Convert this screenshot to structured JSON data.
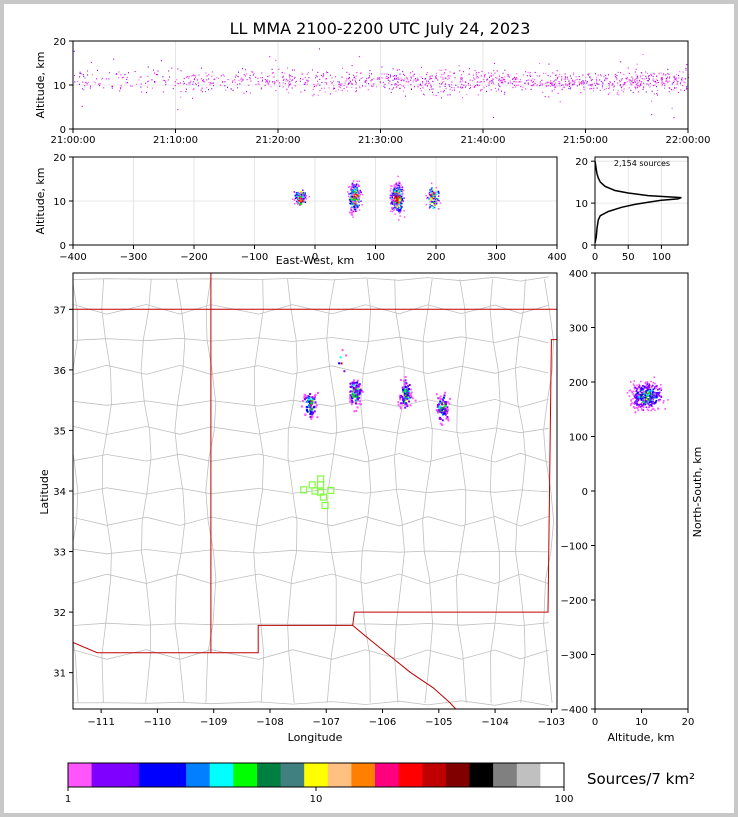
{
  "chart_data": [
    {
      "type": "scatter",
      "panel": "altitude-vs-time",
      "title": "LL MMA 2100-2200 UTC July 24, 2023",
      "ylabel": "Altitude, km",
      "xlabel": "",
      "x_ticks": [
        "21:00:00",
        "21:10:00",
        "21:20:00",
        "21:30:00",
        "21:40:00",
        "21:50:00",
        "22:00:00"
      ],
      "ylim": [
        0,
        20
      ],
      "y_ticks": [
        0,
        10,
        20
      ],
      "grid": true,
      "band_center_km": 11,
      "band_spread_km": 2
    },
    {
      "type": "scatter",
      "panel": "altitude-vs-east-west",
      "xlabel": "East-West, km",
      "ylabel": "Altitude, km",
      "xlim": [
        -400,
        400
      ],
      "x_ticks": [
        -400,
        -300,
        -200,
        -100,
        0,
        100,
        200,
        300,
        400
      ],
      "ylim": [
        0,
        20
      ],
      "y_ticks": [
        0,
        10,
        20
      ],
      "grid": true,
      "clusters_x_km": [
        -25,
        65,
        135,
        195
      ]
    },
    {
      "type": "line",
      "panel": "altitude-histogram",
      "annotation": "2,154 sources",
      "xlim": [
        0,
        140
      ],
      "x_ticks": [
        0,
        50,
        100
      ],
      "ylim": [
        0,
        21
      ],
      "y_ticks": [
        0,
        10,
        20
      ],
      "profile": [
        [
          0,
          0.5
        ],
        [
          2,
          2
        ],
        [
          3,
          4
        ],
        [
          5,
          6
        ],
        [
          8,
          7
        ],
        [
          20,
          8
        ],
        [
          40,
          9
        ],
        [
          60,
          9.7
        ],
        [
          80,
          10.2
        ],
        [
          100,
          10.7
        ],
        [
          125,
          11
        ],
        [
          130,
          11.3
        ],
        [
          80,
          11.8
        ],
        [
          50,
          12.4
        ],
        [
          30,
          13
        ],
        [
          15,
          14
        ],
        [
          8,
          15
        ],
        [
          5,
          16
        ],
        [
          3,
          17
        ],
        [
          2,
          18
        ],
        [
          1,
          19
        ],
        [
          0,
          20
        ]
      ]
    },
    {
      "type": "heatmap",
      "panel": "plan-view",
      "xlabel": "Longitude",
      "ylabel": "Latitude",
      "xlim": [
        -111.5,
        -102.9
      ],
      "ylim": [
        30.4,
        37.6
      ],
      "x_ticks": [
        -111,
        -110,
        -109,
        -108,
        -107,
        -106,
        -105,
        -104,
        -103
      ],
      "y_ticks": [
        31,
        32,
        33,
        34,
        35,
        36,
        37
      ],
      "clusters": [
        {
          "lon": -107.3,
          "lat": 35.45
        },
        {
          "lon": -106.5,
          "lat": 35.65
        },
        {
          "lon": -105.6,
          "lat": 35.6
        },
        {
          "lon": -104.95,
          "lat": 35.4
        },
        {
          "lon": -106.75,
          "lat": 36.13
        }
      ],
      "stations": [
        {
          "lon": -107.1,
          "lat": 34.2
        },
        {
          "lon": -107.1,
          "lat": 34.1
        },
        {
          "lon": -107.25,
          "lat": 34.1
        },
        {
          "lon": -107.4,
          "lat": 34.02
        },
        {
          "lon": -107.2,
          "lat": 34.0
        },
        {
          "lon": -107.1,
          "lat": 33.98
        },
        {
          "lon": -106.92,
          "lat": 34.01
        },
        {
          "lon": -107.05,
          "lat": 33.9
        },
        {
          "lon": -107.02,
          "lat": 33.76
        }
      ]
    },
    {
      "type": "scatter",
      "panel": "north-south-vs-altitude",
      "xlabel": "Altitude, km",
      "ylabel": "North-South, km",
      "xlim": [
        0,
        20
      ],
      "x_ticks": [
        0,
        10,
        20
      ],
      "ylim": [
        -400,
        400
      ],
      "y_ticks": [
        -400,
        -300,
        -200,
        -100,
        0,
        100,
        200,
        300,
        400
      ],
      "cluster": {
        "alt_km": 11,
        "ns_km": 175
      }
    }
  ],
  "colorbar": {
    "label": "Sources/7 km²",
    "ticks": [
      "1",
      "10",
      "100"
    ],
    "colors": [
      "#ff55ff",
      "#8000ff",
      "#8000ff",
      "#0000ff",
      "#0000ff",
      "#0080ff",
      "#00ffff",
      "#00ff00",
      "#008040",
      "#408080",
      "#ffff00",
      "#ffc080",
      "#ff8000",
      "#ff0080",
      "#ff0000",
      "#c00000",
      "#800000",
      "#000000",
      "#808080",
      "#c0c0c0",
      "#ffffff"
    ]
  },
  "colors": {
    "border": "#c00000",
    "county_lines": "#c0c0c0",
    "station": "#80ff40",
    "grid": "#e0e0e0"
  }
}
